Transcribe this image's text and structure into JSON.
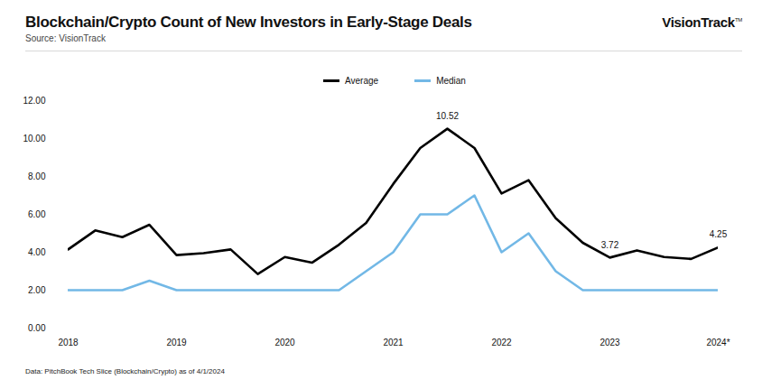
{
  "chart_data": {
    "type": "line",
    "title": "Blockchain/Crypto Count of New Investors in Early-Stage Deals",
    "subtitle": "Source: VisionTrack",
    "brand": "VisionTrack",
    "brand_mark": "TM",
    "note": "Data: PitchBook Tech Slice (Blockchain/Crypto) as of 4/1/2024",
    "legend": "top",
    "grid": false,
    "categories": [
      "2018",
      null,
      null,
      null,
      "2019",
      null,
      null,
      null,
      "2020",
      null,
      null,
      null,
      "2021",
      null,
      null,
      null,
      "2022",
      null,
      null,
      null,
      "2023",
      null,
      null,
      null,
      "2024*"
    ],
    "ylim": [
      0,
      12
    ],
    "yticks": [
      {
        "value": 0,
        "label": "0.00"
      },
      {
        "value": 2,
        "label": "2.00"
      },
      {
        "value": 4,
        "label": "4.00"
      },
      {
        "value": 6,
        "label": "6.00"
      },
      {
        "value": 8,
        "label": "8.00"
      },
      {
        "value": 10,
        "label": "10.00"
      },
      {
        "value": 12,
        "label": "12.00"
      }
    ],
    "series": [
      {
        "name": "Average",
        "color": "#000000",
        "values": [
          4.15,
          5.15,
          4.8,
          5.45,
          3.85,
          3.95,
          4.15,
          2.85,
          3.75,
          3.45,
          4.4,
          5.55,
          7.6,
          9.5,
          10.52,
          9.5,
          7.1,
          7.8,
          5.8,
          4.5,
          3.72,
          4.1,
          3.75,
          3.65,
          4.25
        ],
        "value_labels": [
          null,
          null,
          null,
          null,
          null,
          null,
          null,
          null,
          null,
          null,
          null,
          null,
          null,
          null,
          "10.52",
          null,
          null,
          null,
          null,
          null,
          "3.72",
          null,
          null,
          null,
          "4.25"
        ]
      },
      {
        "name": "Median",
        "color": "#72b8e6",
        "values": [
          2,
          2,
          2,
          2.5,
          2,
          2,
          2,
          2,
          2,
          2,
          2,
          3,
          4,
          6,
          6,
          7,
          4,
          5,
          3,
          2,
          2,
          2,
          2,
          2,
          2
        ]
      }
    ]
  }
}
